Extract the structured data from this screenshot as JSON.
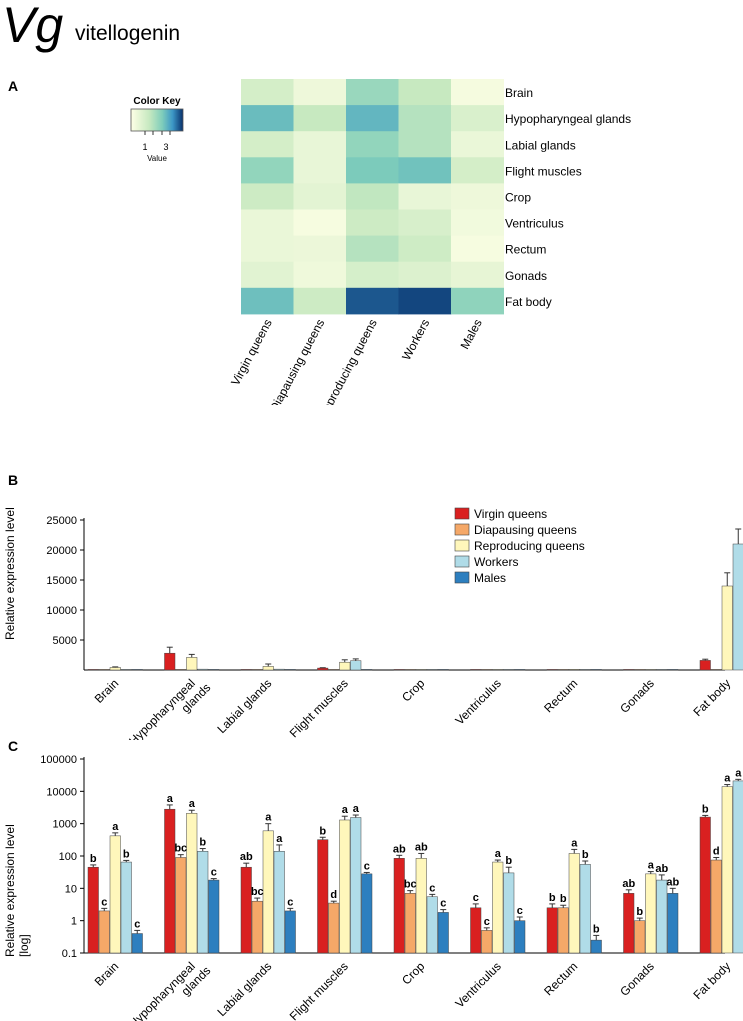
{
  "header": {
    "gene_symbol": "Vg",
    "gene_name": "vitellogenin"
  },
  "panels": {
    "a": "A",
    "b": "B",
    "c": "C"
  },
  "colors": {
    "series": [
      "#d92020",
      "#f5a868",
      "#fff7bb",
      "#b0dce8",
      "#2d7fbf"
    ],
    "heat_low": "#ffffe6",
    "heat_mid": "#8fd3bf",
    "heat_high": "#08306b"
  },
  "chart_data": [
    {
      "type": "heatmap",
      "title": "",
      "color_key": {
        "title": "Color Key",
        "tick_labels": [
          "1",
          "3"
        ],
        "label": "Value"
      },
      "rows": [
        "Brain",
        "Hypopharyngeal glands",
        "Labial glands",
        "Flight muscles",
        "Crop",
        "Ventriculus",
        "Rectum",
        "Gonads",
        "Fat body"
      ],
      "columns": [
        "Virgin queens",
        "Diapausing queens",
        "Reproducing queens",
        "Workers",
        "Males"
      ],
      "values": [
        [
          1.55,
          0.8,
          2.65,
          1.9,
          0.6
        ],
        [
          3.35,
          1.9,
          3.45,
          2.2,
          1.4
        ],
        [
          1.55,
          0.95,
          2.75,
          2.2,
          0.9
        ],
        [
          2.75,
          0.95,
          3.1,
          3.25,
          1.55
        ],
        [
          1.75,
          1.1,
          2.0,
          0.95,
          0.8
        ],
        [
          0.9,
          0.55,
          1.75,
          1.45,
          0.7
        ],
        [
          0.9,
          0.85,
          2.2,
          1.7,
          0.55
        ],
        [
          1.15,
          0.75,
          1.5,
          1.3,
          1.0
        ],
        [
          3.3,
          1.75,
          4.55,
          4.7,
          2.8
        ]
      ]
    },
    {
      "type": "bar",
      "ylabel": "Relative expression level",
      "ylim": [
        0,
        25000
      ],
      "yticks": [
        5000,
        10000,
        15000,
        20000,
        25000
      ],
      "categories": [
        "Brain",
        "Hypopharyngeal glands",
        "Labial glands",
        "Flight muscles",
        "Crop",
        "Ventriculus",
        "Rectum",
        "Gonads",
        "Fat body"
      ],
      "category_labels": [
        [
          "Brain"
        ],
        [
          "Hypopharyngeal",
          "glands"
        ],
        [
          "Labial glands"
        ],
        [
          "Flight muscles"
        ],
        [
          "Crop"
        ],
        [
          "Ventriculus"
        ],
        [
          "Rectum"
        ],
        [
          "Gonads"
        ],
        [
          "Fat body"
        ]
      ],
      "legend": {
        "position": "top-right",
        "entries": [
          "Virgin queens",
          "Diapausing queens",
          "Reproducing queens",
          "Workers",
          "Males"
        ]
      },
      "series": [
        {
          "name": "Virgin queens",
          "values": [
            45,
            2800,
            45,
            320,
            85,
            2.5,
            2.5,
            7,
            1600
          ],
          "errors": [
            8,
            1000,
            15,
            60,
            20,
            0.8,
            0.8,
            2,
            200
          ]
        },
        {
          "name": "Diapausing queens",
          "values": [
            2,
            90,
            4,
            3.5,
            7,
            0.5,
            2.5,
            1,
            75
          ],
          "errors": [
            0.4,
            20,
            1,
            0.5,
            1.5,
            0.1,
            0.5,
            0.2,
            15
          ]
        },
        {
          "name": "Reproducing queens",
          "values": [
            420,
            2100,
            600,
            1300,
            85,
            65,
            120,
            28,
            14000
          ],
          "errors": [
            100,
            500,
            400,
            400,
            35,
            10,
            40,
            5,
            2200
          ]
        },
        {
          "name": "Workers",
          "values": [
            65,
            140,
            140,
            1550,
            5.5,
            30,
            55,
            18,
            21000
          ],
          "errors": [
            8,
            30,
            80,
            300,
            1,
            15,
            15,
            8,
            2500
          ]
        },
        {
          "name": "Males",
          "values": [
            0.4,
            18,
            2,
            28,
            1.8,
            1,
            0.25,
            7,
            550
          ],
          "errors": [
            0.1,
            2,
            0.4,
            3,
            0.4,
            0.3,
            0.1,
            3,
            80
          ]
        }
      ]
    },
    {
      "type": "bar",
      "yscale": "log",
      "ylabel": [
        "Relative expression level",
        "[log]"
      ],
      "ylim": [
        0.1,
        100000
      ],
      "yticks": [
        "0.1",
        "1",
        "10",
        "100",
        "1000",
        "10000",
        "100000"
      ],
      "categories": [
        "Brain",
        "Hypopharyngeal glands",
        "Labial glands",
        "Flight muscles",
        "Crop",
        "Ventriculus",
        "Rectum",
        "Gonads",
        "Fat body"
      ],
      "category_labels": [
        [
          "Brain"
        ],
        [
          "Hypopharyngeal",
          "glands"
        ],
        [
          "Labial glands"
        ],
        [
          "Flight muscles"
        ],
        [
          "Crop"
        ],
        [
          "Ventriculus"
        ],
        [
          "Rectum"
        ],
        [
          "Gonads"
        ],
        [
          "Fat body"
        ]
      ],
      "significance_letters": [
        [
          "b",
          "c",
          "a",
          "b",
          "c"
        ],
        [
          "a",
          "bc",
          "a",
          "b",
          "c"
        ],
        [
          "ab",
          "bc",
          "a",
          "a",
          "c"
        ],
        [
          "b",
          "d",
          "a",
          "a",
          "c"
        ],
        [
          "ab",
          "bc",
          "ab",
          "c",
          "c"
        ],
        [
          "c",
          "c",
          "a",
          "b",
          "c"
        ],
        [
          "b",
          "b",
          "a",
          "b",
          "b"
        ],
        [
          "ab",
          "b",
          "a",
          "ab",
          "ab"
        ],
        [
          "b",
          "d",
          "a",
          "a",
          "c"
        ]
      ]
    }
  ]
}
